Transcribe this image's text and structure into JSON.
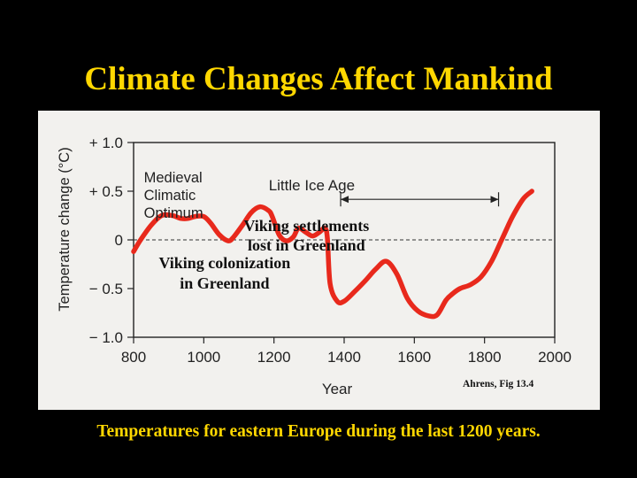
{
  "slide": {
    "title": "Climate Changes Affect Mankind",
    "caption": "Temperatures for eastern Europe during the last 1200 years.",
    "title_color": "#ffd700",
    "background_color": "#000000"
  },
  "chart_data": {
    "type": "line",
    "title": "",
    "xlabel": "Year",
    "ylabel": "Temperature change (°C)",
    "xlim": [
      800,
      2000
    ],
    "ylim": [
      -1.0,
      1.0
    ],
    "x_ticks": [
      800,
      1000,
      1200,
      1400,
      1600,
      1800,
      2000
    ],
    "y_ticks": [
      1.0,
      0.5,
      0,
      -0.5,
      -1.0
    ],
    "y_tick_labels": [
      "+ 1.0",
      "+ 0.5",
      "0",
      "− 0.5",
      "− 1.0"
    ],
    "grid": false,
    "reference_line": {
      "y": 0,
      "style": "dashed"
    },
    "series": [
      {
        "color": "#e8291c",
        "x": [
          800,
          820,
          850,
          880,
          910,
          935,
          955,
          975,
          1000,
          1020,
          1045,
          1070,
          1085,
          1110,
          1135,
          1160,
          1185,
          1195,
          1215,
          1235,
          1255,
          1270,
          1290,
          1310,
          1330,
          1345,
          1352,
          1360,
          1380,
          1400,
          1430,
          1460,
          1490,
          1520,
          1550,
          1580,
          1610,
          1640,
          1665,
          1690,
          1710,
          1730,
          1760,
          1790,
          1820,
          1850,
          1880,
          1910,
          1935
        ],
        "y": [
          -0.12,
          0.0,
          0.15,
          0.25,
          0.25,
          0.22,
          0.22,
          0.24,
          0.24,
          0.17,
          0.05,
          -0.01,
          0.03,
          0.15,
          0.28,
          0.34,
          0.3,
          0.24,
          0.05,
          -0.01,
          0.03,
          0.12,
          0.08,
          0.04,
          0.08,
          0.12,
          0.02,
          -0.45,
          -0.63,
          -0.63,
          -0.53,
          -0.42,
          -0.3,
          -0.22,
          -0.35,
          -0.6,
          -0.73,
          -0.78,
          -0.77,
          -0.62,
          -0.55,
          -0.5,
          -0.46,
          -0.38,
          -0.22,
          0.01,
          0.24,
          0.42,
          0.5
        ]
      }
    ],
    "annotations": [
      {
        "text": "Medieval Climatic Optimum",
        "lines": [
          "Medieval",
          "Climatic",
          "Optimum"
        ],
        "x": 905,
        "y": 0.72
      },
      {
        "text": "Little Ice Age",
        "x": 1590,
        "y": 0.58,
        "span": [
          1390,
          1840
        ]
      },
      {
        "text": "Viking colonization in Greenland",
        "lines": [
          "Viking colonization",
          "in Greenland"
        ],
        "x": 1135,
        "y": -0.22
      },
      {
        "text": "Viking settlements lost in Greenland",
        "lines": [
          "Viking settlements",
          "lost in Greenland"
        ],
        "x": 1590,
        "y": 0.08
      },
      {
        "text": "Ahrens, Fig 13.4",
        "x": 1830,
        "y": -1.24
      }
    ]
  }
}
